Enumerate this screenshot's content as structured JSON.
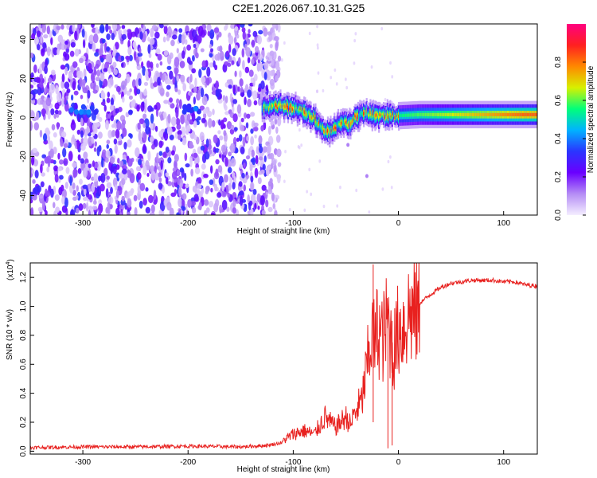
{
  "figure_title": "C2E1.2026.067.10.31.G25",
  "colors": {
    "snr_line": "#e8211f",
    "axis": "#000000",
    "background": "#ffffff"
  },
  "chart_data": [
    {
      "type": "heatmap",
      "title": "C2E1.2026.067.10.31.G25",
      "xlabel": "Height of straight line (km)",
      "ylabel": "Frequency (Hz)",
      "xlim": [
        -350,
        132
      ],
      "ylim": [
        -50,
        48
      ],
      "x_ticks": [
        -300,
        -200,
        -100,
        0,
        100
      ],
      "x_tick_labels": [
        "-300",
        "-200",
        "-100",
        "0",
        "100"
      ],
      "y_ticks": [
        -40,
        -20,
        0,
        20,
        40
      ],
      "y_tick_labels": [
        "-40",
        "-20",
        "0",
        "20",
        "40"
      ],
      "colorbar": {
        "label": "Normalized spectral amplitude",
        "range": [
          0,
          1
        ],
        "ticks": [
          0.0,
          0.2,
          0.4,
          0.6,
          0.8
        ],
        "tick_labels": [
          "0.0",
          "0.2",
          "0.4",
          "0.6",
          "0.8"
        ],
        "colormap": [
          "#f4eeff",
          "#b58cf5",
          "#6a00ff",
          "#2a35ff",
          "#00b3ff",
          "#00ff7a",
          "#d8f000",
          "#ff8800",
          "#ff2020",
          "#ff0080"
        ]
      },
      "noise_region_x": [
        -350,
        -125
      ],
      "signal_center_hz": [
        [
          -130,
          5
        ],
        [
          -120,
          6
        ],
        [
          -110,
          6
        ],
        [
          -100,
          5
        ],
        [
          -90,
          3
        ],
        [
          -82,
          0
        ],
        [
          -75,
          -4
        ],
        [
          -68,
          -8
        ],
        [
          -62,
          -6
        ],
        [
          -55,
          -3
        ],
        [
          -48,
          -3
        ],
        [
          -42,
          0
        ],
        [
          -35,
          2
        ],
        [
          -28,
          2
        ],
        [
          -20,
          1
        ],
        [
          -10,
          1
        ],
        [
          0,
          1
        ],
        [
          20,
          1.5
        ],
        [
          60,
          1.5
        ],
        [
          132,
          1.5
        ]
      ],
      "early_bursts": [
        {
          "x": -305,
          "f": 4
        },
        {
          "x": -290,
          "f": 3
        },
        {
          "x": -205,
          "f": 4
        },
        {
          "x": -195,
          "f": 3
        }
      ]
    },
    {
      "type": "line",
      "xlabel": "Height of straight line (km)",
      "ylabel": "SNR (10 * v/v)",
      "y_multiplier": "(x10",
      "y_multiplier_exp": "4",
      "y_multiplier_close": ")",
      "xlim": [
        -350,
        132
      ],
      "ylim": [
        -0.02,
        1.3
      ],
      "x_ticks": [
        -300,
        -200,
        -100,
        0,
        100
      ],
      "x_tick_labels": [
        "-300",
        "-200",
        "-100",
        "0",
        "100"
      ],
      "y_ticks": [
        0.0,
        0.2,
        0.4,
        0.6,
        0.8,
        1.0,
        1.2
      ],
      "y_tick_labels": [
        "0.0",
        "0.2",
        "0.4",
        "0.6",
        "0.8",
        "1.0",
        "1.2"
      ],
      "series": [
        {
          "name": "SNR",
          "x": [
            -350,
            -300,
            -250,
            -200,
            -150,
            -125,
            -110,
            -100,
            -90,
            -80,
            -70,
            -60,
            -50,
            -45,
            -40,
            -35,
            -30,
            -25,
            -22,
            -20,
            -15,
            -10,
            -5,
            0,
            5,
            10,
            15,
            20,
            30,
            40,
            50,
            60,
            70,
            80,
            90,
            100,
            110,
            120,
            132
          ],
          "values": [
            0.025,
            0.03,
            0.03,
            0.035,
            0.03,
            0.04,
            0.06,
            0.1,
            0.12,
            0.1,
            0.2,
            0.14,
            0.2,
            0.15,
            0.3,
            0.35,
            0.6,
            0.85,
            0.75,
            0.9,
            0.8,
            0.95,
            0.7,
            0.88,
            0.9,
            1.0,
            0.98,
            1.02,
            1.08,
            1.13,
            1.16,
            1.17,
            1.18,
            1.18,
            1.18,
            1.17,
            1.17,
            1.15,
            1.14
          ]
        }
      ],
      "highlights": [
        {
          "x": -24,
          "peak": 1.29,
          "floor": 0.2
        },
        {
          "x": -10,
          "peak": 0.98,
          "floor": 0.02
        },
        {
          "x": -6,
          "peak": 0.9,
          "floor": 0.04
        }
      ]
    }
  ]
}
